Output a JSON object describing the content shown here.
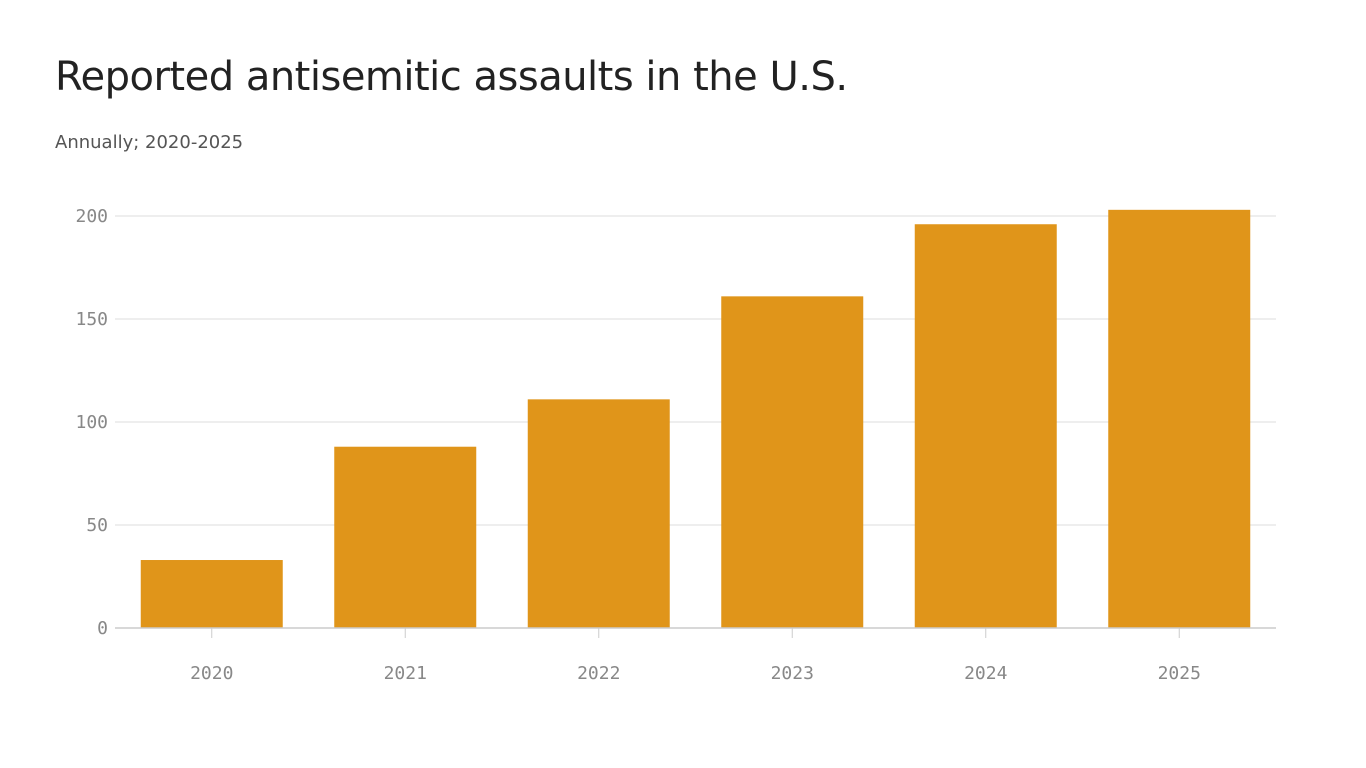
{
  "chart_data": {
    "type": "bar",
    "title": "Reported antisemitic assaults in the U.S.",
    "subtitle": "Annually; 2020-2025",
    "xlabel": "",
    "ylabel": "",
    "categories": [
      "2020",
      "2021",
      "2022",
      "2023",
      "2024",
      "2025"
    ],
    "values": [
      33,
      88,
      111,
      161,
      196,
      203
    ],
    "ylim": [
      0,
      200
    ],
    "yticks": [
      0,
      50,
      100,
      150,
      200
    ],
    "grid": true,
    "legend": "none",
    "bar_color": "#E0951A",
    "grid_color": "#dcdcdc"
  }
}
